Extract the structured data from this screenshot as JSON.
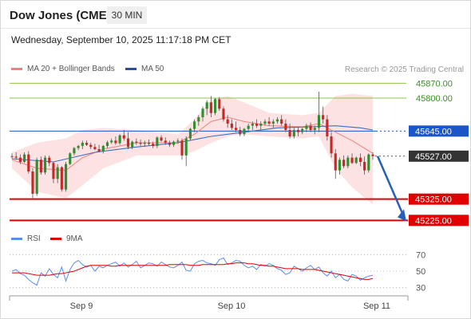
{
  "header": {
    "title": "Dow Jones (CME)",
    "timeframe": "30 MIN",
    "datetime": "Wednesday, September 10, 2025 11:17:18 PM CET"
  },
  "legend": {
    "ma20_label": "MA 20 + Bollinger Bands",
    "ma50_label": "MA 50",
    "rsi_label": "RSI",
    "rsi9_label": "9MA",
    "credit": "Research © 2025 Trading Central"
  },
  "colors": {
    "up": "#2f8f2f",
    "down": "#c62828",
    "ma20": "#f08080",
    "band_fill": "#fbd6d6",
    "ma50": "#3a6fc4",
    "resistance": "#8bc34a",
    "support": "#e00000",
    "pivot": "#1a56c8",
    "last": "#333333",
    "rsi": "#5b8def",
    "rsi_ma": "#e00000",
    "arrow": "#2a5fb8"
  },
  "chart_data": [
    {
      "type": "candlestick",
      "title": "Dow Jones (CME)",
      "interval": "30 MIN",
      "x_ticks": [
        "Sep 9",
        "Sep 10",
        "Sep 11"
      ],
      "y_range": [
        45200,
        45890
      ],
      "levels": [
        {
          "label": "45870.00",
          "value": 45870,
          "kind": "resistance",
          "style": "thin"
        },
        {
          "label": "45800.00",
          "value": 45800,
          "kind": "resistance",
          "style": "thin"
        },
        {
          "label": "45645.00",
          "value": 45645,
          "kind": "pivot",
          "style": "thin"
        },
        {
          "label": "45527.00",
          "value": 45527,
          "kind": "last",
          "style": "dotted"
        },
        {
          "label": "45325.00",
          "value": 45325,
          "kind": "support",
          "style": "thick"
        },
        {
          "label": "45225.00",
          "value": 45225,
          "kind": "support",
          "style": "thick"
        }
      ],
      "forecast_arrow": {
        "from_value": 45527,
        "to_value": 45225
      },
      "candles": [
        [
          45527,
          45540,
          45515,
          45525
        ],
        [
          45525,
          45545,
          45510,
          45520
        ],
        [
          45520,
          45535,
          45490,
          45500
        ],
        [
          45500,
          45545,
          45495,
          45535
        ],
        [
          45535,
          45550,
          45445,
          45455
        ],
        [
          45455,
          45470,
          45330,
          45350
        ],
        [
          45350,
          45520,
          45340,
          45510
        ],
        [
          45510,
          45525,
          45440,
          45450
        ],
        [
          45450,
          45530,
          45440,
          45520
        ],
        [
          45520,
          45530,
          45480,
          45495
        ],
        [
          45495,
          45500,
          45400,
          45420
        ],
        [
          45420,
          45490,
          45400,
          45475
        ],
        [
          45475,
          45480,
          45360,
          45370
        ],
        [
          45370,
          45500,
          45360,
          45490
        ],
        [
          45490,
          45545,
          45485,
          45540
        ],
        [
          45540,
          45570,
          45530,
          45565
        ],
        [
          45565,
          45580,
          45555,
          45575
        ],
        [
          45575,
          45600,
          45560,
          45590
        ],
        [
          45590,
          45600,
          45575,
          45580
        ],
        [
          45580,
          45590,
          45560,
          45570
        ],
        [
          45570,
          45585,
          45555,
          45560
        ],
        [
          45560,
          45580,
          45545,
          45550
        ],
        [
          45550,
          45580,
          45540,
          45575
        ],
        [
          45575,
          45600,
          45565,
          45592
        ],
        [
          45592,
          45610,
          45585,
          45600
        ],
        [
          45600,
          45620,
          45580,
          45588
        ],
        [
          45588,
          45630,
          45580,
          45625
        ],
        [
          45625,
          45650,
          45600,
          45610
        ],
        [
          45610,
          45640,
          45560,
          45570
        ],
        [
          45570,
          45600,
          45560,
          45595
        ],
        [
          45595,
          45610,
          45580,
          45590
        ],
        [
          45590,
          45605,
          45575,
          45585
        ],
        [
          45585,
          45600,
          45570,
          45590
        ],
        [
          45590,
          45605,
          45575,
          45585
        ],
        [
          45585,
          45595,
          45565,
          45575
        ],
        [
          45575,
          45620,
          45565,
          45615
        ],
        [
          45615,
          45625,
          45595,
          45600
        ],
        [
          45600,
          45615,
          45580,
          45590
        ],
        [
          45590,
          45600,
          45570,
          45580
        ],
        [
          45580,
          45600,
          45570,
          45595
        ],
        [
          45595,
          45610,
          45585,
          45600
        ],
        [
          45600,
          45610,
          45510,
          45530
        ],
        [
          45530,
          45620,
          45480,
          45610
        ],
        [
          45610,
          45660,
          45600,
          45655
        ],
        [
          45655,
          45700,
          45640,
          45690
        ],
        [
          45690,
          45720,
          45670,
          45710
        ],
        [
          45710,
          45760,
          45690,
          45750
        ],
        [
          45750,
          45790,
          45720,
          45780
        ],
        [
          45780,
          45810,
          45710,
          45730
        ],
        [
          45730,
          45800,
          45720,
          45795
        ],
        [
          45795,
          45805,
          45740,
          45750
        ],
        [
          45750,
          45760,
          45690,
          45700
        ],
        [
          45700,
          45720,
          45660,
          45680
        ],
        [
          45680,
          45700,
          45650,
          45660
        ],
        [
          45660,
          45690,
          45640,
          45650
        ],
        [
          45650,
          45665,
          45620,
          45630
        ],
        [
          45630,
          45660,
          45620,
          45655
        ],
        [
          45655,
          45680,
          45640,
          45670
        ],
        [
          45670,
          45690,
          45650,
          45680
        ],
        [
          45680,
          45700,
          45660,
          45670
        ],
        [
          45670,
          45690,
          45650,
          45680
        ],
        [
          45680,
          45700,
          45670,
          45690
        ],
        [
          45690,
          45710,
          45670,
          45680
        ],
        [
          45680,
          45700,
          45660,
          45690
        ],
        [
          45690,
          45710,
          45680,
          45700
        ],
        [
          45700,
          45720,
          45670,
          45680
        ],
        [
          45680,
          45700,
          45640,
          45650
        ],
        [
          45650,
          45680,
          45610,
          45620
        ],
        [
          45620,
          45660,
          45610,
          45650
        ],
        [
          45650,
          45665,
          45620,
          45640
        ],
        [
          45640,
          45660,
          45630,
          45655
        ],
        [
          45655,
          45680,
          45640,
          45670
        ],
        [
          45670,
          45685,
          45640,
          45650
        ],
        [
          45650,
          45670,
          45630,
          45660
        ],
        [
          45660,
          45830,
          45640,
          45720
        ],
        [
          45720,
          45760,
          45680,
          45700
        ],
        [
          45700,
          45720,
          45600,
          45620
        ],
        [
          45620,
          45640,
          45520,
          45540
        ],
        [
          45540,
          45560,
          45420,
          45460
        ],
        [
          45460,
          45520,
          45440,
          45510
        ],
        [
          45510,
          45530,
          45470,
          45480
        ],
        [
          45480,
          45530,
          45470,
          45520
        ],
        [
          45520,
          45540,
          45490,
          45495
        ],
        [
          45495,
          45525,
          45490,
          45520
        ],
        [
          45520,
          45540,
          45480,
          45500
        ],
        [
          45500,
          45525,
          45440,
          45460
        ],
        [
          45460,
          45540,
          45450,
          45535
        ],
        [
          45535,
          45545,
          45510,
          45527
        ]
      ],
      "ma20": [
        [
          0,
          45510
        ],
        [
          6,
          45470
        ],
        [
          13,
          45460
        ],
        [
          17,
          45520
        ],
        [
          22,
          45560
        ],
        [
          30,
          45590
        ],
        [
          40,
          45590
        ],
        [
          44,
          45630
        ],
        [
          48,
          45690
        ],
        [
          52,
          45710
        ],
        [
          56,
          45690
        ],
        [
          62,
          45670
        ],
        [
          70,
          45665
        ],
        [
          74,
          45680
        ],
        [
          78,
          45640
        ],
        [
          82,
          45600
        ],
        [
          87,
          45540
        ]
      ],
      "bb_upper": [
        [
          0,
          45545
        ],
        [
          6,
          45590
        ],
        [
          13,
          45610
        ],
        [
          17,
          45650
        ],
        [
          22,
          45660
        ],
        [
          30,
          45650
        ],
        [
          40,
          45630
        ],
        [
          44,
          45700
        ],
        [
          48,
          45790
        ],
        [
          52,
          45810
        ],
        [
          56,
          45780
        ],
        [
          62,
          45730
        ],
        [
          70,
          45720
        ],
        [
          74,
          45730
        ],
        [
          78,
          45810
        ],
        [
          82,
          45820
        ],
        [
          87,
          45810
        ]
      ],
      "bb_lower": [
        [
          0,
          45470
        ],
        [
          6,
          45360
        ],
        [
          13,
          45330
        ],
        [
          17,
          45390
        ],
        [
          22,
          45470
        ],
        [
          30,
          45530
        ],
        [
          40,
          45530
        ],
        [
          44,
          45550
        ],
        [
          48,
          45590
        ],
        [
          52,
          45620
        ],
        [
          56,
          45630
        ],
        [
          62,
          45620
        ],
        [
          70,
          45610
        ],
        [
          74,
          45620
        ],
        [
          78,
          45470
        ],
        [
          82,
          45380
        ],
        [
          87,
          45300
        ]
      ],
      "ma50": [
        [
          0,
          45515
        ],
        [
          10,
          45500
        ],
        [
          20,
          45545
        ],
        [
          30,
          45570
        ],
        [
          40,
          45590
        ],
        [
          48,
          45620
        ],
        [
          56,
          45640
        ],
        [
          64,
          45660
        ],
        [
          72,
          45665
        ],
        [
          78,
          45670
        ],
        [
          84,
          45660
        ],
        [
          87,
          45650
        ]
      ]
    },
    {
      "type": "line",
      "title": "RSI",
      "y_ticks": [
        70,
        50,
        30
      ],
      "y_range": [
        20,
        80
      ],
      "series": [
        {
          "name": "RSI",
          "values": [
            50,
            52,
            47,
            45,
            40,
            36,
            33,
            48,
            44,
            53,
            46,
            42,
            55,
            38,
            52,
            60,
            63,
            58,
            55,
            57,
            50,
            56,
            54,
            57,
            59,
            61,
            56,
            60,
            55,
            58,
            62,
            54,
            57,
            60,
            59,
            56,
            61,
            58,
            55,
            54,
            57,
            61,
            51,
            50,
            59,
            62,
            63,
            60,
            59,
            57,
            64,
            66,
            58,
            60,
            63,
            62,
            57,
            54,
            56,
            52,
            58,
            56,
            59,
            57,
            53,
            51,
            46,
            48,
            56,
            53,
            50,
            54,
            57,
            52,
            55,
            48,
            44,
            50,
            42,
            46,
            40,
            38,
            46,
            44,
            39,
            42,
            44,
            45
          ]
        },
        {
          "name": "9MA",
          "values": [
            48,
            48,
            48,
            48,
            47,
            46,
            45,
            45,
            45,
            45,
            46,
            47,
            47,
            48,
            49,
            50,
            52,
            54,
            56,
            57,
            57,
            57,
            57,
            57,
            56,
            56,
            57,
            57,
            57,
            57,
            57,
            57,
            57,
            57,
            57,
            57,
            57,
            57,
            58,
            58,
            58,
            58,
            58,
            57,
            57,
            57,
            58,
            58,
            58,
            58,
            58,
            58,
            59,
            59,
            60,
            60,
            60,
            59,
            59,
            58,
            57,
            57,
            56,
            56,
            55,
            54,
            53,
            53,
            53,
            53,
            52,
            52,
            52,
            52,
            51,
            50,
            49,
            48,
            47,
            46,
            45,
            44,
            43,
            42,
            41,
            40,
            40,
            41
          ]
        }
      ]
    }
  ]
}
